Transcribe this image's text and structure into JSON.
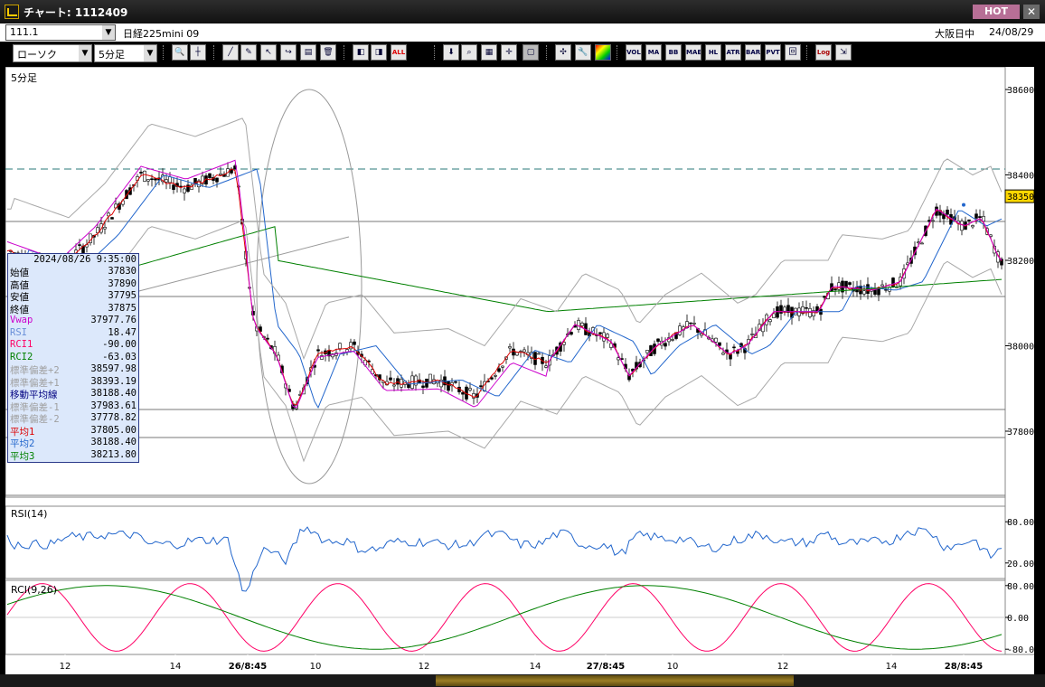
{
  "window": {
    "title": "チャート: 1112409",
    "hot_label": "HOT",
    "close_label": "✕"
  },
  "info": {
    "symbol_code": "111.1",
    "instrument": "日経225mini 09",
    "market": "大阪日中",
    "date": "24/08/29"
  },
  "toolbar": {
    "chart_type": "ローソク",
    "interval": "5分足",
    "buttons": [
      "zoom",
      "crosshair",
      "line",
      "pen",
      "select",
      "arrow",
      "note",
      "trash",
      "bars-left",
      "bars-right",
      "all",
      "down",
      "zoom-search",
      "grid",
      "center",
      "disabled",
      "tools",
      "wrench",
      "palette",
      "vol",
      "ma",
      "bb",
      "mae",
      "hl",
      "atr",
      "bars",
      "pvt",
      "box",
      "log",
      "exit"
    ],
    "labels": {
      "all": "ALL",
      "vol": "VOL",
      "ma": "MA",
      "bb": "BB",
      "mae": "MAE",
      "hl": "HL",
      "atr": "ATR",
      "bars": "BARS",
      "pvt": "PVT",
      "log": "Log"
    }
  },
  "main_panel": {
    "label": "5分足",
    "price_ticks": [
      "38600",
      "38400",
      "38200",
      "38000",
      "37800"
    ],
    "current_price": "38350"
  },
  "rsi_panel": {
    "label": "RSI(14)",
    "ticks": [
      "80.00",
      "20.00"
    ]
  },
  "rci_panel": {
    "label": "RCI(9,26)",
    "ticks": [
      "80.00",
      "0.00",
      "-80.00"
    ]
  },
  "x_ticks": [
    "12",
    "14",
    "26/8:45",
    "10",
    "12",
    "14",
    "27/8:45",
    "10",
    "12",
    "14",
    "28/8:45"
  ],
  "ohlc_box": {
    "datetime": "2024/08/26 9:35:00",
    "rows": [
      {
        "label": "始値",
        "value": "37830",
        "color": "#000000"
      },
      {
        "label": "高値",
        "value": "37890",
        "color": "#000000"
      },
      {
        "label": "安値",
        "value": "37795",
        "color": "#000000"
      },
      {
        "label": "終値",
        "value": "37875",
        "color": "#000000"
      },
      {
        "label": "Vwap",
        "value": "37977.76",
        "color": "#cc00cc"
      },
      {
        "label": "RSI",
        "value": "18.47",
        "color": "#6a8fd8"
      },
      {
        "label": "RCI1",
        "value": "-90.00",
        "color": "#ff0066"
      },
      {
        "label": "RCI2",
        "value": "-63.03",
        "color": "#008000"
      },
      {
        "label": "標準偏差+2",
        "value": "38597.98",
        "color": "#a0a0a0"
      },
      {
        "label": "標準偏差+1",
        "value": "38393.19",
        "color": "#a0a0a0"
      },
      {
        "label": "移動平均線",
        "value": "38188.40",
        "color": "#000080"
      },
      {
        "label": "標準偏差-1",
        "value": "37983.61",
        "color": "#a0a0a0"
      },
      {
        "label": "標準偏差-2",
        "value": "37778.82",
        "color": "#a0a0a0"
      },
      {
        "label": "平均1",
        "value": "37805.00",
        "color": "#dd0000"
      },
      {
        "label": "平均2",
        "value": "38188.40",
        "color": "#2266cc"
      },
      {
        "label": "平均3",
        "value": "38213.80",
        "color": "#008000"
      }
    ]
  }
}
